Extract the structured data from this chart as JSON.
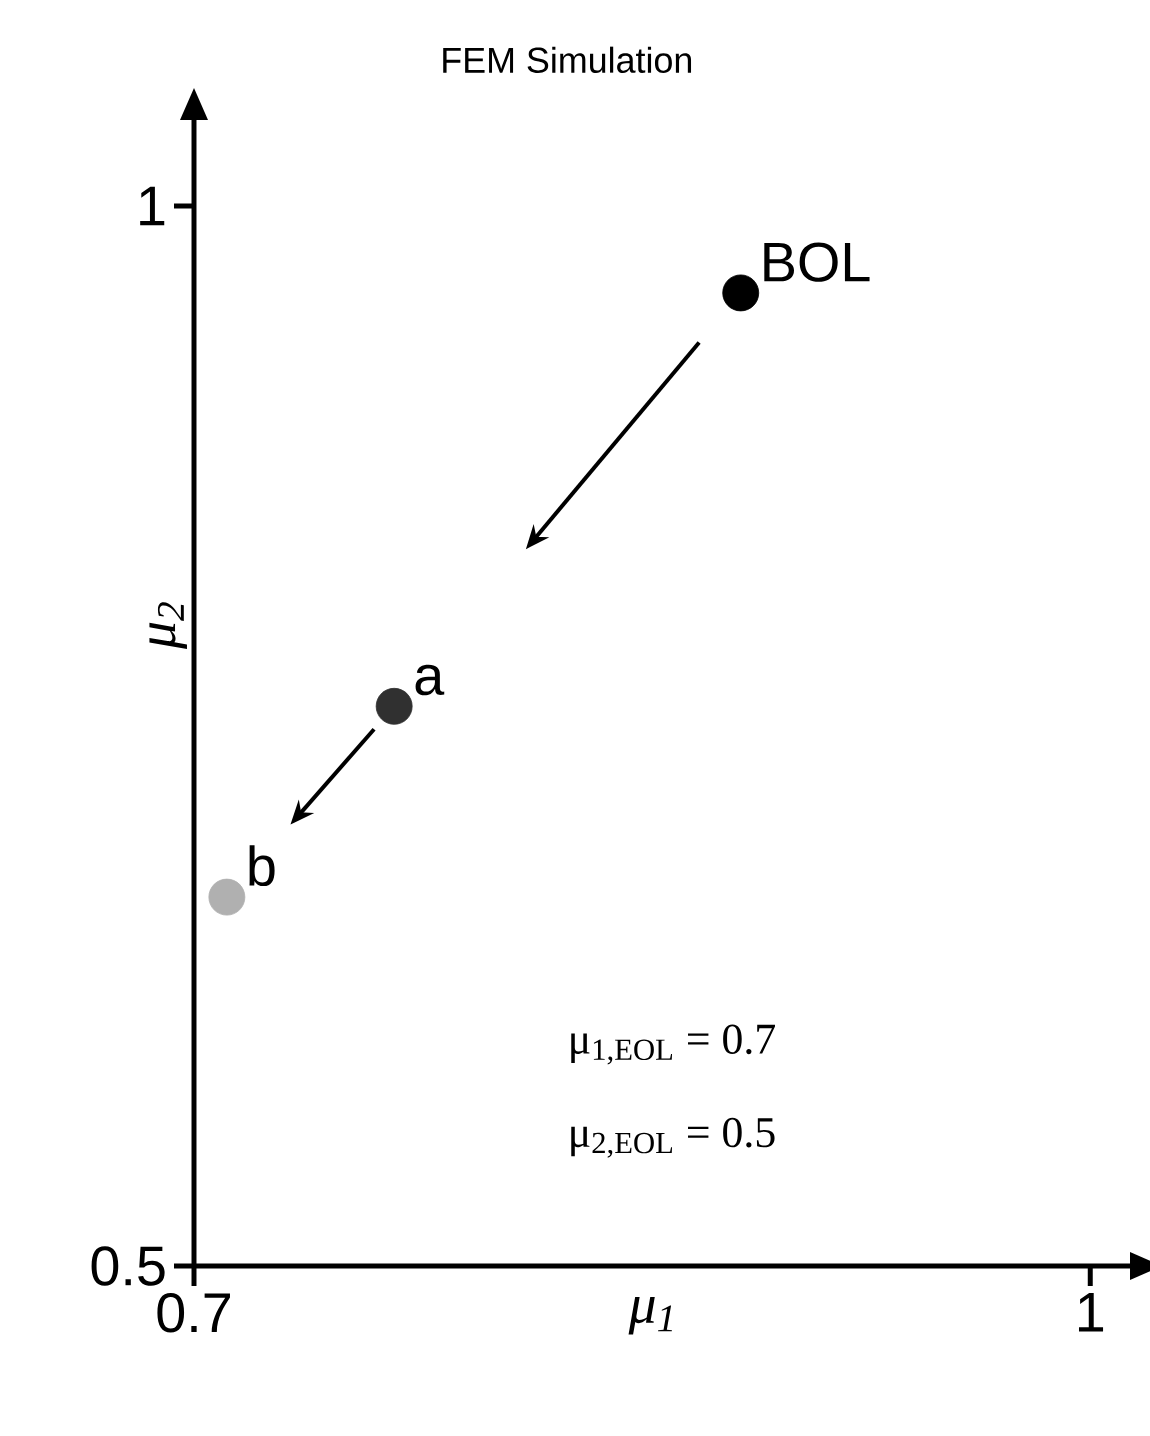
{
  "chart_data": {
    "type": "scatter",
    "title": "FEM Simulation",
    "xlabel": "μ$_{1}$",
    "ylabel": "μ$_{2}$",
    "x": [
      0.883,
      0.767,
      0.711
    ],
    "values": [
      0.959,
      0.764,
      0.674
    ],
    "colors": [
      "#000000",
      "#303030",
      "#b0b0b0"
    ],
    "xlim": [
      0.7,
      1.02
    ],
    "ylim": [
      0.5,
      1.05
    ],
    "xticks": [
      0.7,
      1
    ],
    "yticks": [
      0.5,
      1
    ],
    "grid": false,
    "value_labels": [
      "BOL",
      "a",
      "b"
    ],
    "annotations": [
      "μ$_{1,EOL}$ = 0.7",
      "μ$_{2,EOL}$ = 0.5"
    ]
  }
}
